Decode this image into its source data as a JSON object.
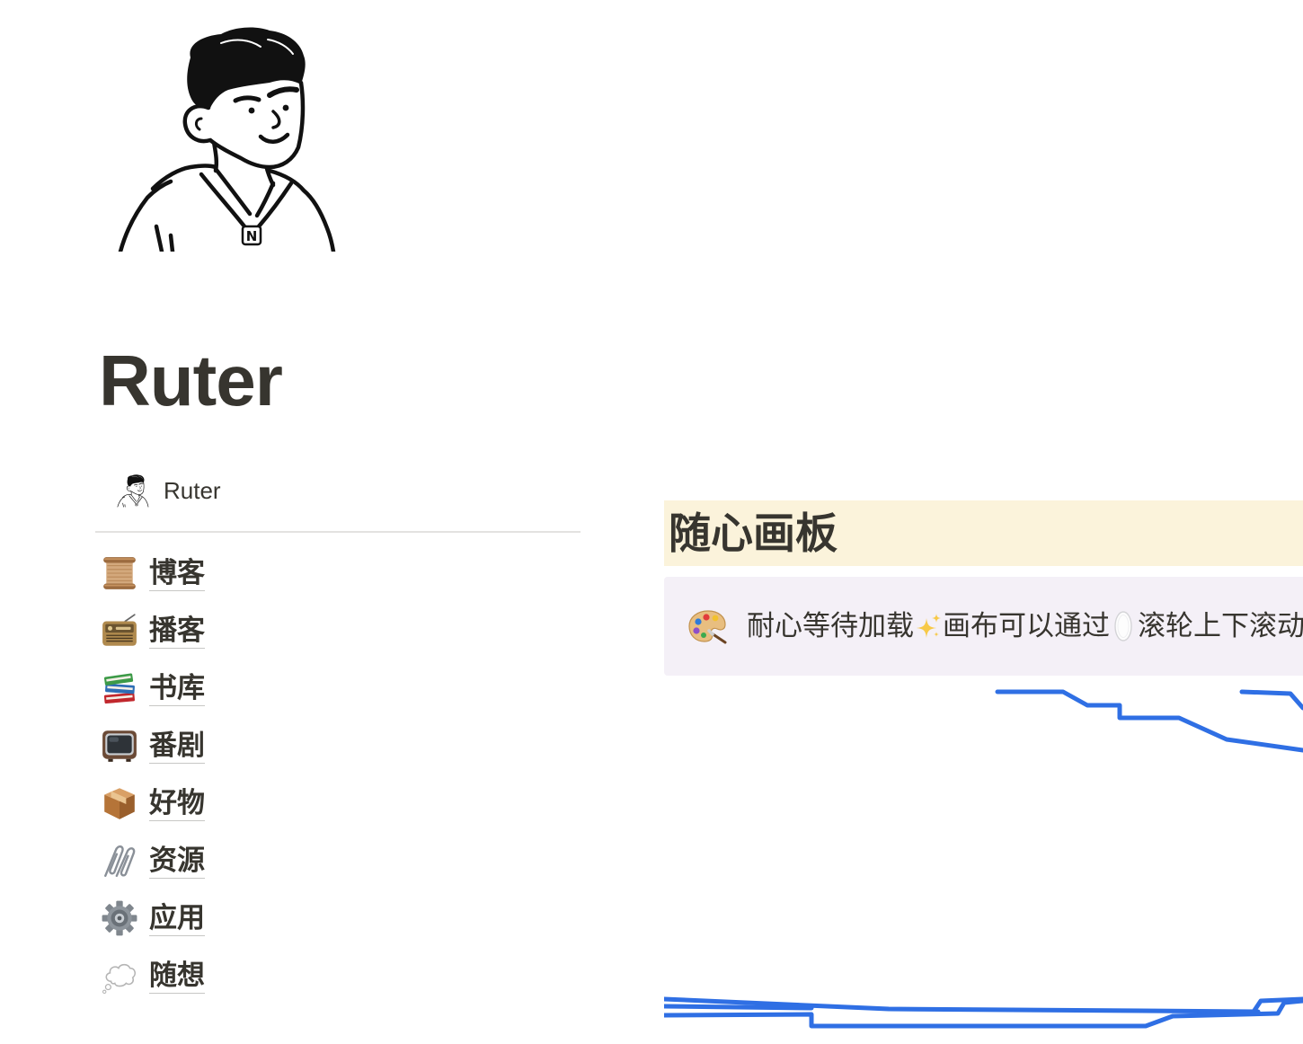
{
  "page": {
    "title": "Ruter"
  },
  "avatar": {
    "icon": "person-avatar-illustration",
    "badge_logo_text": "N"
  },
  "page_link": {
    "icon": "person-avatar-icon",
    "label": "Ruter"
  },
  "nav": {
    "items": [
      {
        "icon": "scroll-icon",
        "label": "博客"
      },
      {
        "icon": "radio-icon",
        "label": "播客"
      },
      {
        "icon": "books-icon",
        "label": "书库"
      },
      {
        "icon": "television-icon",
        "label": "番剧"
      },
      {
        "icon": "package-icon",
        "label": "好物"
      },
      {
        "icon": "paperclips-icon",
        "label": "资源"
      },
      {
        "icon": "gear-icon",
        "label": "应用"
      },
      {
        "icon": "thought-balloon-icon",
        "label": "随想"
      }
    ]
  },
  "board": {
    "heading": "随心画板",
    "callout": {
      "icon": "artist-palette-icon",
      "text_1": "耐心等待加载",
      "icon_1": "sparkles-icon",
      "text_2": "画布可以通过",
      "icon_2": "computer-mouse-icon",
      "text_3": "滚轮上下滚动"
    }
  },
  "colors": {
    "text": "#37352F",
    "heading_highlight": "#FBF3DB",
    "callout_background": "#F4F0F7",
    "divider": "#E3E2E0",
    "canvas_stroke": "#2F6FE4"
  }
}
